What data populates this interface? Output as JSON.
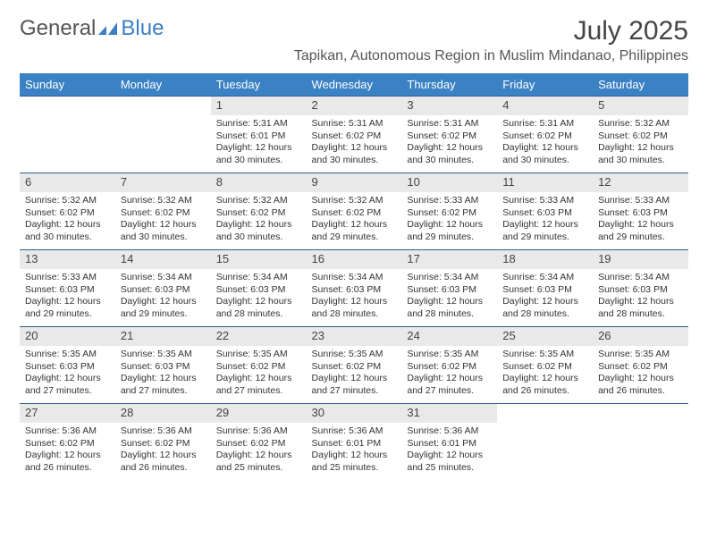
{
  "logo": {
    "word1": "General",
    "word2": "Blue"
  },
  "title": "July 2025",
  "subtitle": "Tapikan, Autonomous Region in Muslim Mindanao, Philippines",
  "colors": {
    "header_bg": "#3b82c4",
    "header_text": "#ffffff",
    "row_divider": "#2f5f8f",
    "daynum_bg": "#e9e9e9",
    "text": "#333333",
    "logo_gray": "#555555",
    "logo_blue": "#3b7fc4"
  },
  "weekdays": [
    "Sunday",
    "Monday",
    "Tuesday",
    "Wednesday",
    "Thursday",
    "Friday",
    "Saturday"
  ],
  "weeks": [
    [
      null,
      null,
      {
        "n": "1",
        "sr": "Sunrise: 5:31 AM",
        "ss": "Sunset: 6:01 PM",
        "dl1": "Daylight: 12 hours",
        "dl2": "and 30 minutes."
      },
      {
        "n": "2",
        "sr": "Sunrise: 5:31 AM",
        "ss": "Sunset: 6:02 PM",
        "dl1": "Daylight: 12 hours",
        "dl2": "and 30 minutes."
      },
      {
        "n": "3",
        "sr": "Sunrise: 5:31 AM",
        "ss": "Sunset: 6:02 PM",
        "dl1": "Daylight: 12 hours",
        "dl2": "and 30 minutes."
      },
      {
        "n": "4",
        "sr": "Sunrise: 5:31 AM",
        "ss": "Sunset: 6:02 PM",
        "dl1": "Daylight: 12 hours",
        "dl2": "and 30 minutes."
      },
      {
        "n": "5",
        "sr": "Sunrise: 5:32 AM",
        "ss": "Sunset: 6:02 PM",
        "dl1": "Daylight: 12 hours",
        "dl2": "and 30 minutes."
      }
    ],
    [
      {
        "n": "6",
        "sr": "Sunrise: 5:32 AM",
        "ss": "Sunset: 6:02 PM",
        "dl1": "Daylight: 12 hours",
        "dl2": "and 30 minutes."
      },
      {
        "n": "7",
        "sr": "Sunrise: 5:32 AM",
        "ss": "Sunset: 6:02 PM",
        "dl1": "Daylight: 12 hours",
        "dl2": "and 30 minutes."
      },
      {
        "n": "8",
        "sr": "Sunrise: 5:32 AM",
        "ss": "Sunset: 6:02 PM",
        "dl1": "Daylight: 12 hours",
        "dl2": "and 30 minutes."
      },
      {
        "n": "9",
        "sr": "Sunrise: 5:32 AM",
        "ss": "Sunset: 6:02 PM",
        "dl1": "Daylight: 12 hours",
        "dl2": "and 29 minutes."
      },
      {
        "n": "10",
        "sr": "Sunrise: 5:33 AM",
        "ss": "Sunset: 6:02 PM",
        "dl1": "Daylight: 12 hours",
        "dl2": "and 29 minutes."
      },
      {
        "n": "11",
        "sr": "Sunrise: 5:33 AM",
        "ss": "Sunset: 6:03 PM",
        "dl1": "Daylight: 12 hours",
        "dl2": "and 29 minutes."
      },
      {
        "n": "12",
        "sr": "Sunrise: 5:33 AM",
        "ss": "Sunset: 6:03 PM",
        "dl1": "Daylight: 12 hours",
        "dl2": "and 29 minutes."
      }
    ],
    [
      {
        "n": "13",
        "sr": "Sunrise: 5:33 AM",
        "ss": "Sunset: 6:03 PM",
        "dl1": "Daylight: 12 hours",
        "dl2": "and 29 minutes."
      },
      {
        "n": "14",
        "sr": "Sunrise: 5:34 AM",
        "ss": "Sunset: 6:03 PM",
        "dl1": "Daylight: 12 hours",
        "dl2": "and 29 minutes."
      },
      {
        "n": "15",
        "sr": "Sunrise: 5:34 AM",
        "ss": "Sunset: 6:03 PM",
        "dl1": "Daylight: 12 hours",
        "dl2": "and 28 minutes."
      },
      {
        "n": "16",
        "sr": "Sunrise: 5:34 AM",
        "ss": "Sunset: 6:03 PM",
        "dl1": "Daylight: 12 hours",
        "dl2": "and 28 minutes."
      },
      {
        "n": "17",
        "sr": "Sunrise: 5:34 AM",
        "ss": "Sunset: 6:03 PM",
        "dl1": "Daylight: 12 hours",
        "dl2": "and 28 minutes."
      },
      {
        "n": "18",
        "sr": "Sunrise: 5:34 AM",
        "ss": "Sunset: 6:03 PM",
        "dl1": "Daylight: 12 hours",
        "dl2": "and 28 minutes."
      },
      {
        "n": "19",
        "sr": "Sunrise: 5:34 AM",
        "ss": "Sunset: 6:03 PM",
        "dl1": "Daylight: 12 hours",
        "dl2": "and 28 minutes."
      }
    ],
    [
      {
        "n": "20",
        "sr": "Sunrise: 5:35 AM",
        "ss": "Sunset: 6:03 PM",
        "dl1": "Daylight: 12 hours",
        "dl2": "and 27 minutes."
      },
      {
        "n": "21",
        "sr": "Sunrise: 5:35 AM",
        "ss": "Sunset: 6:03 PM",
        "dl1": "Daylight: 12 hours",
        "dl2": "and 27 minutes."
      },
      {
        "n": "22",
        "sr": "Sunrise: 5:35 AM",
        "ss": "Sunset: 6:02 PM",
        "dl1": "Daylight: 12 hours",
        "dl2": "and 27 minutes."
      },
      {
        "n": "23",
        "sr": "Sunrise: 5:35 AM",
        "ss": "Sunset: 6:02 PM",
        "dl1": "Daylight: 12 hours",
        "dl2": "and 27 minutes."
      },
      {
        "n": "24",
        "sr": "Sunrise: 5:35 AM",
        "ss": "Sunset: 6:02 PM",
        "dl1": "Daylight: 12 hours",
        "dl2": "and 27 minutes."
      },
      {
        "n": "25",
        "sr": "Sunrise: 5:35 AM",
        "ss": "Sunset: 6:02 PM",
        "dl1": "Daylight: 12 hours",
        "dl2": "and 26 minutes."
      },
      {
        "n": "26",
        "sr": "Sunrise: 5:35 AM",
        "ss": "Sunset: 6:02 PM",
        "dl1": "Daylight: 12 hours",
        "dl2": "and 26 minutes."
      }
    ],
    [
      {
        "n": "27",
        "sr": "Sunrise: 5:36 AM",
        "ss": "Sunset: 6:02 PM",
        "dl1": "Daylight: 12 hours",
        "dl2": "and 26 minutes."
      },
      {
        "n": "28",
        "sr": "Sunrise: 5:36 AM",
        "ss": "Sunset: 6:02 PM",
        "dl1": "Daylight: 12 hours",
        "dl2": "and 26 minutes."
      },
      {
        "n": "29",
        "sr": "Sunrise: 5:36 AM",
        "ss": "Sunset: 6:02 PM",
        "dl1": "Daylight: 12 hours",
        "dl2": "and 25 minutes."
      },
      {
        "n": "30",
        "sr": "Sunrise: 5:36 AM",
        "ss": "Sunset: 6:01 PM",
        "dl1": "Daylight: 12 hours",
        "dl2": "and 25 minutes."
      },
      {
        "n": "31",
        "sr": "Sunrise: 5:36 AM",
        "ss": "Sunset: 6:01 PM",
        "dl1": "Daylight: 12 hours",
        "dl2": "and 25 minutes."
      },
      null,
      null
    ]
  ]
}
